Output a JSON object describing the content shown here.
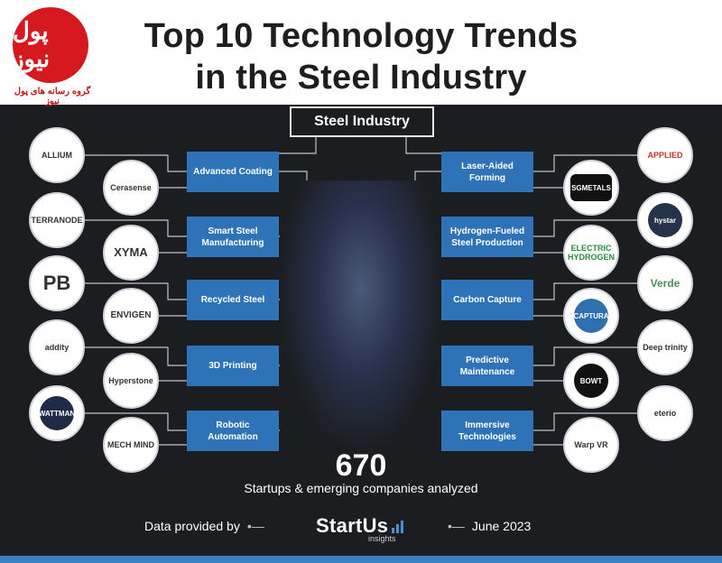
{
  "header": {
    "title_line1": "Top 10 Technology Trends",
    "title_line2": "in the Steel Industry",
    "source_logo": {
      "text": "پول نیوز",
      "caption": "گروه رسانه های پول نیوز",
      "color": "#d6181f"
    }
  },
  "root_label": "Steel Industry",
  "trends_left": [
    {
      "label": "Advanced Coating",
      "startups": [
        "ALLIUM",
        "Cerasense"
      ]
    },
    {
      "label": "Smart Steel Manufacturing",
      "startups": [
        "TERRANODE",
        "XYMA"
      ]
    },
    {
      "label": "Recycled Steel",
      "startups": [
        "PB",
        "ENVIGEN"
      ]
    },
    {
      "label": "3D Printing",
      "startups": [
        "addity",
        "Hyperstone"
      ]
    },
    {
      "label": "Robotic Automation",
      "startups": [
        "WATTMAN",
        "MECH MIND"
      ]
    }
  ],
  "trends_right": [
    {
      "label": "Laser-Aided Forming",
      "startups": [
        "APPLIED",
        "SGMETALS"
      ]
    },
    {
      "label": "Hydrogen-Fueled Steel Production",
      "startups": [
        "hystar",
        "ELECTRIC HYDROGEN"
      ]
    },
    {
      "label": "Carbon Capture",
      "startups": [
        "Verde",
        "CAPTURA"
      ]
    },
    {
      "label": "Predictive Maintenance",
      "startups": [
        "Deep trinity",
        "BOWT"
      ]
    },
    {
      "label": "Immersive Technologies",
      "startups": [
        "eterio",
        "Warp VR"
      ]
    }
  ],
  "stats": {
    "count": "670",
    "caption": "Startups & emerging companies analyzed"
  },
  "footer": {
    "provided_by": "Data provided by",
    "brand_name": "StartUs",
    "brand_sub": "insights",
    "date": "June 2023"
  },
  "colors": {
    "background": "#1b1d20",
    "trend_box": "#2e73b8",
    "accent_bar": "#3b7fc4"
  }
}
